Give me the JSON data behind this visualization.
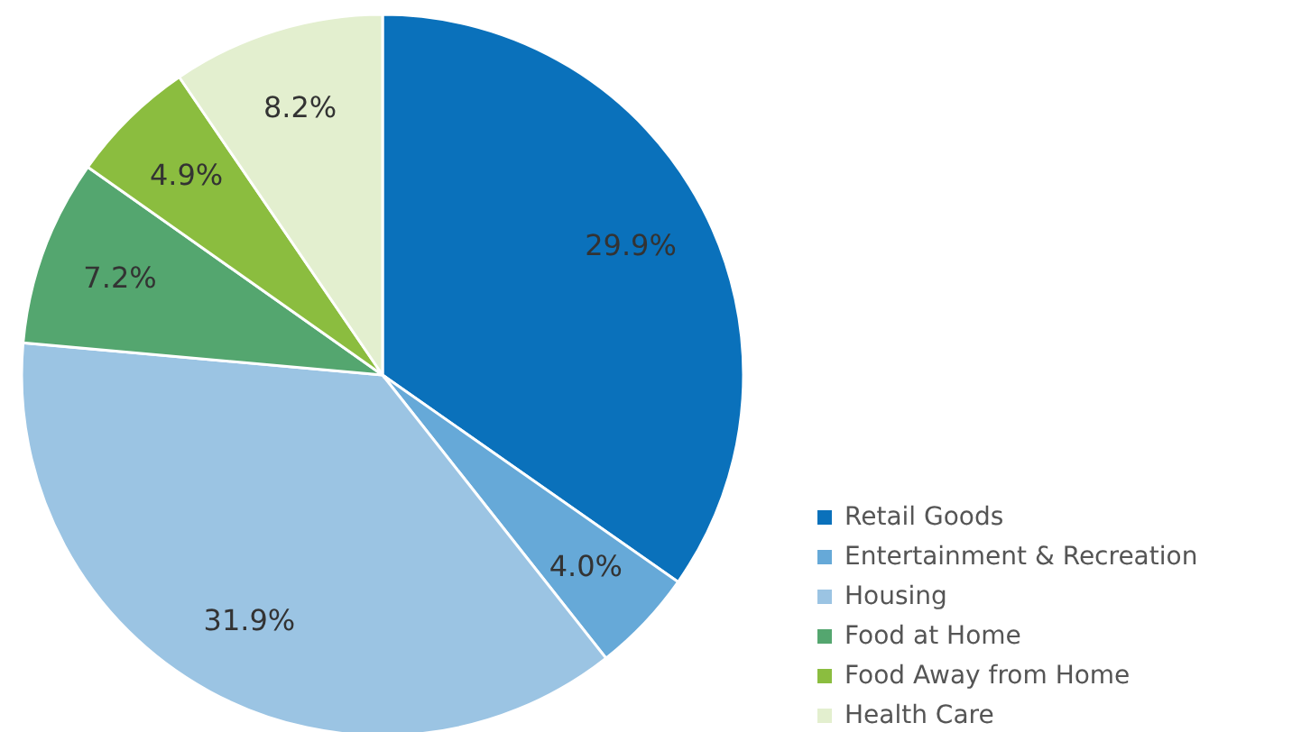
{
  "chart_data": {
    "type": "pie",
    "categories": [
      "Retail Goods",
      "Entertainment & Recreation",
      "Housing",
      "Food at Home",
      "Food Away from Home",
      "Health Care"
    ],
    "values": [
      29.9,
      4.0,
      31.9,
      7.2,
      4.9,
      8.2
    ],
    "value_labels": [
      "29.9%",
      "4.0%",
      "31.9%",
      "7.2%",
      "4.9%",
      "8.2%"
    ],
    "colors": [
      "#0a71bb",
      "#66a9d8",
      "#9bc4e3",
      "#54a66f",
      "#8bbd3f",
      "#e3efcf"
    ],
    "legend": "bottom right"
  }
}
